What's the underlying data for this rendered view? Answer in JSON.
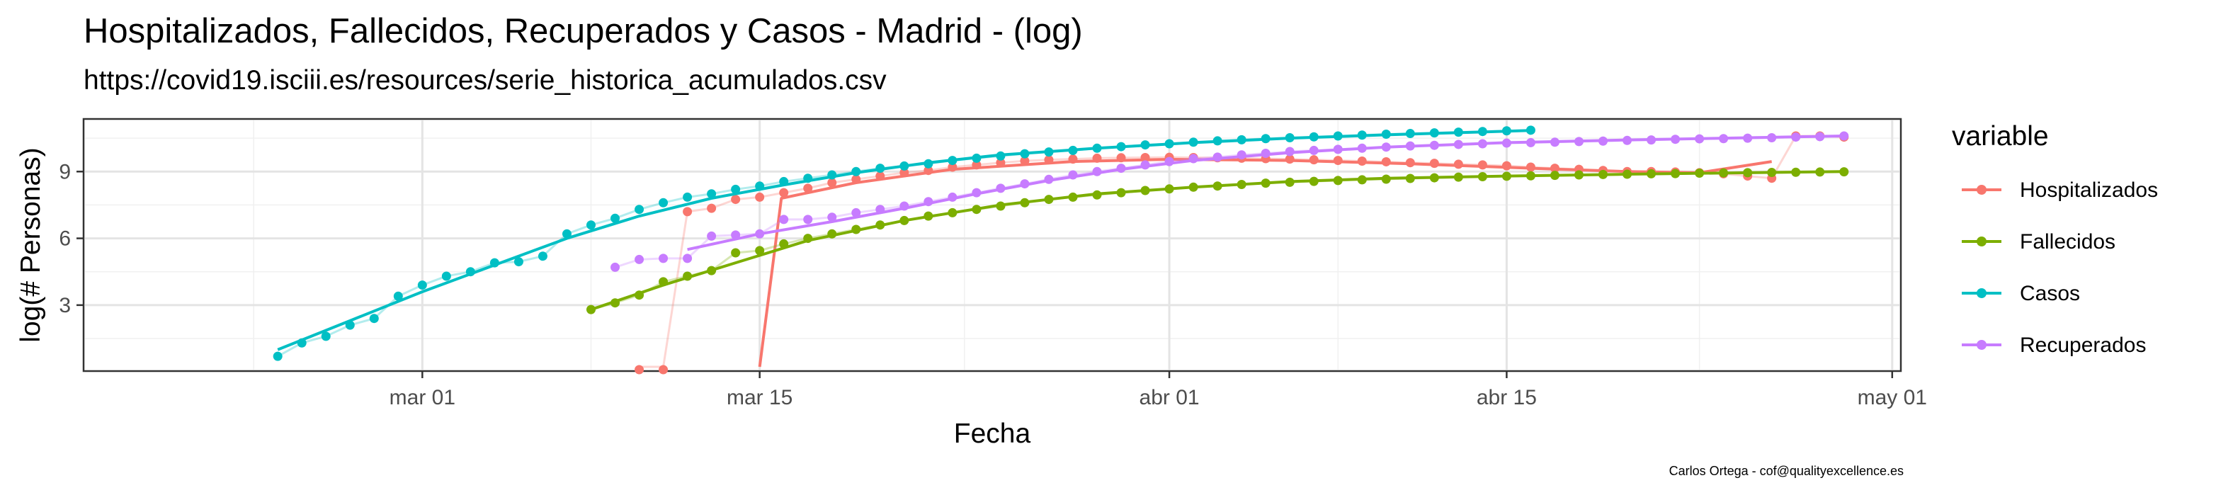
{
  "chart_data": {
    "type": "scatter",
    "title": "Hospitalizados, Fallecidos, Recuperados y Casos - Madrid - (log)",
    "subtitle": "https://covid19.isciii.es/resources/serie_historica_acumulados.csv",
    "xlabel": "Fecha",
    "ylabel": "log(# Personas)",
    "caption": "Carlos Ortega - cof@qualityexcellence.es",
    "x_ticks": [
      {
        "label": "mar 01",
        "day": 0
      },
      {
        "label": "mar 15",
        "day": 14
      },
      {
        "label": "abr 01",
        "day": 31
      },
      {
        "label": "abr 15",
        "day": 45
      },
      {
        "label": "may 01",
        "day": 61
      }
    ],
    "y_ticks": [
      3,
      6,
      9
    ],
    "xlim": [
      -14,
      61.3
    ],
    "ylim": [
      0.1,
      11.3
    ],
    "grid": true,
    "legend_title": "variable",
    "legend_position": "right",
    "series": [
      {
        "name": "Hospitalizados",
        "color": "#F8766D",
        "points": [
          [
            9,
            0
          ],
          [
            10,
            0
          ],
          [
            11,
            7.2
          ],
          [
            12,
            7.35
          ],
          [
            13,
            7.75
          ],
          [
            14,
            7.85
          ],
          [
            15,
            8.05
          ],
          [
            16,
            8.25
          ],
          [
            17,
            8.5
          ],
          [
            18,
            8.65
          ],
          [
            19,
            8.8
          ],
          [
            20,
            8.95
          ],
          [
            21,
            9.05
          ],
          [
            22,
            9.2
          ],
          [
            23,
            9.3
          ],
          [
            24,
            9.4
          ],
          [
            25,
            9.48
          ],
          [
            26,
            9.53
          ],
          [
            27,
            9.56
          ],
          [
            28,
            9.6
          ],
          [
            29,
            9.62
          ],
          [
            30,
            9.63
          ],
          [
            31,
            9.64
          ],
          [
            32,
            9.63
          ],
          [
            33,
            9.62
          ],
          [
            34,
            9.6
          ],
          [
            35,
            9.58
          ],
          [
            36,
            9.56
          ],
          [
            37,
            9.53
          ],
          [
            38,
            9.5
          ],
          [
            39,
            9.47
          ],
          [
            40,
            9.44
          ],
          [
            41,
            9.4
          ],
          [
            42,
            9.37
          ],
          [
            43,
            9.33
          ],
          [
            44,
            9.3
          ],
          [
            45,
            9.26
          ],
          [
            46,
            9.2
          ],
          [
            47,
            9.15
          ],
          [
            48,
            9.1
          ],
          [
            49,
            9.05
          ],
          [
            50,
            9.0
          ],
          [
            51,
            9.0
          ],
          [
            52,
            8.98
          ],
          [
            53,
            8.95
          ],
          [
            54,
            8.9
          ],
          [
            55,
            8.8
          ],
          [
            56,
            8.7
          ],
          [
            57,
            10.6
          ],
          [
            58,
            10.6
          ],
          [
            59,
            10.55
          ]
        ],
        "fit": [
          [
            14.0,
            0.1
          ],
          [
            14.9,
            7.8
          ],
          [
            18,
            8.5
          ],
          [
            22,
            9.1
          ],
          [
            27,
            9.45
          ],
          [
            31,
            9.55
          ],
          [
            36,
            9.5
          ],
          [
            41,
            9.35
          ],
          [
            46,
            9.15
          ],
          [
            50,
            9.0
          ],
          [
            53,
            8.95
          ],
          [
            56,
            9.45
          ]
        ]
      },
      {
        "name": "Fallecidos",
        "color": "#7CAE00",
        "points": [
          [
            7,
            2.8
          ],
          [
            8,
            3.1
          ],
          [
            9,
            3.45
          ],
          [
            10,
            4.05
          ],
          [
            11,
            4.3
          ],
          [
            12,
            4.55
          ],
          [
            13,
            5.35
          ],
          [
            14,
            5.45
          ],
          [
            15,
            5.75
          ],
          [
            16,
            6.0
          ],
          [
            17,
            6.2
          ],
          [
            18,
            6.4
          ],
          [
            19,
            6.6
          ],
          [
            20,
            6.8
          ],
          [
            21,
            7.0
          ],
          [
            22,
            7.15
          ],
          [
            23,
            7.3
          ],
          [
            24,
            7.45
          ],
          [
            25,
            7.6
          ],
          [
            26,
            7.75
          ],
          [
            27,
            7.85
          ],
          [
            28,
            7.95
          ],
          [
            29,
            8.05
          ],
          [
            30,
            8.15
          ],
          [
            31,
            8.22
          ],
          [
            32,
            8.3
          ],
          [
            33,
            8.35
          ],
          [
            34,
            8.42
          ],
          [
            35,
            8.48
          ],
          [
            36,
            8.52
          ],
          [
            37,
            8.56
          ],
          [
            38,
            8.6
          ],
          [
            39,
            8.63
          ],
          [
            40,
            8.66
          ],
          [
            41,
            8.69
          ],
          [
            42,
            8.72
          ],
          [
            43,
            8.75
          ],
          [
            44,
            8.77
          ],
          [
            45,
            8.79
          ],
          [
            46,
            8.81
          ],
          [
            47,
            8.83
          ],
          [
            48,
            8.85
          ],
          [
            49,
            8.87
          ],
          [
            50,
            8.88
          ],
          [
            51,
            8.9
          ],
          [
            52,
            8.91
          ],
          [
            53,
            8.93
          ],
          [
            54,
            8.94
          ],
          [
            55,
            8.95
          ],
          [
            56,
            8.96
          ],
          [
            57,
            8.97
          ],
          [
            58,
            8.98
          ],
          [
            59,
            8.99
          ]
        ],
        "fit": [
          [
            7,
            2.8
          ],
          [
            10,
            3.9
          ],
          [
            13,
            4.9
          ],
          [
            16,
            5.9
          ],
          [
            20,
            6.8
          ],
          [
            24,
            7.5
          ],
          [
            28,
            8.0
          ],
          [
            32,
            8.3
          ],
          [
            36,
            8.55
          ],
          [
            40,
            8.7
          ],
          [
            45,
            8.8
          ],
          [
            50,
            8.88
          ],
          [
            55,
            8.95
          ],
          [
            59,
            9.0
          ]
        ]
      },
      {
        "name": "Casos",
        "color": "#00BFC4",
        "points": [
          [
            -6,
            0.7
          ],
          [
            -5,
            1.3
          ],
          [
            -4,
            1.6
          ],
          [
            -3,
            2.1
          ],
          [
            -2,
            2.4
          ],
          [
            -1,
            3.4
          ],
          [
            0,
            3.9
          ],
          [
            1,
            4.3
          ],
          [
            2,
            4.5
          ],
          [
            3,
            4.9
          ],
          [
            4,
            4.95
          ],
          [
            5,
            5.2
          ],
          [
            6,
            6.2
          ],
          [
            7,
            6.6
          ],
          [
            8,
            6.9
          ],
          [
            9,
            7.3
          ],
          [
            10,
            7.6
          ],
          [
            11,
            7.85
          ],
          [
            12,
            8.0
          ],
          [
            13,
            8.2
          ],
          [
            14,
            8.35
          ],
          [
            15,
            8.55
          ],
          [
            16,
            8.7
          ],
          [
            17,
            8.85
          ],
          [
            18,
            9.0
          ],
          [
            19,
            9.15
          ],
          [
            20,
            9.25
          ],
          [
            21,
            9.35
          ],
          [
            22,
            9.5
          ],
          [
            23,
            9.6
          ],
          [
            24,
            9.7
          ],
          [
            25,
            9.8
          ],
          [
            26,
            9.88
          ],
          [
            27,
            9.95
          ],
          [
            28,
            10.05
          ],
          [
            29,
            10.12
          ],
          [
            30,
            10.2
          ],
          [
            31,
            10.25
          ],
          [
            32,
            10.32
          ],
          [
            33,
            10.38
          ],
          [
            34,
            10.43
          ],
          [
            35,
            10.48
          ],
          [
            36,
            10.52
          ],
          [
            37,
            10.56
          ],
          [
            38,
            10.6
          ],
          [
            39,
            10.64
          ],
          [
            40,
            10.68
          ],
          [
            41,
            10.71
          ],
          [
            42,
            10.74
          ],
          [
            43,
            10.77
          ],
          [
            44,
            10.8
          ],
          [
            45,
            10.83
          ],
          [
            46,
            10.86
          ]
        ],
        "fit": [
          [
            -6,
            1.0
          ],
          [
            -3,
            2.3
          ],
          [
            0,
            3.6
          ],
          [
            3,
            4.8
          ],
          [
            6,
            6.0
          ],
          [
            9,
            7.0
          ],
          [
            12,
            7.8
          ],
          [
            15,
            8.4
          ],
          [
            18,
            8.95
          ],
          [
            21,
            9.4
          ],
          [
            24,
            9.75
          ],
          [
            28,
            10.05
          ],
          [
            32,
            10.3
          ],
          [
            36,
            10.5
          ],
          [
            40,
            10.65
          ],
          [
            44,
            10.78
          ],
          [
            46,
            10.85
          ]
        ]
      },
      {
        "name": "Recuperados",
        "color": "#C77CFF",
        "points": [
          [
            8,
            4.7
          ],
          [
            9,
            5.05
          ],
          [
            10,
            5.1
          ],
          [
            11,
            5.1
          ],
          [
            12,
            6.1
          ],
          [
            13,
            6.15
          ],
          [
            14,
            6.2
          ],
          [
            15,
            6.85
          ],
          [
            16,
            6.85
          ],
          [
            17,
            6.95
          ],
          [
            18,
            7.15
          ],
          [
            19,
            7.3
          ],
          [
            20,
            7.45
          ],
          [
            21,
            7.65
          ],
          [
            22,
            7.85
          ],
          [
            23,
            8.05
          ],
          [
            24,
            8.25
          ],
          [
            25,
            8.45
          ],
          [
            26,
            8.65
          ],
          [
            27,
            8.85
          ],
          [
            28,
            9.0
          ],
          [
            29,
            9.15
          ],
          [
            30,
            9.3
          ],
          [
            31,
            9.45
          ],
          [
            32,
            9.58
          ],
          [
            33,
            9.65
          ],
          [
            34,
            9.75
          ],
          [
            35,
            9.82
          ],
          [
            36,
            9.9
          ],
          [
            37,
            9.95
          ],
          [
            38,
            10.0
          ],
          [
            39,
            10.05
          ],
          [
            40,
            10.1
          ],
          [
            41,
            10.15
          ],
          [
            42,
            10.18
          ],
          [
            43,
            10.22
          ],
          [
            44,
            10.25
          ],
          [
            45,
            10.28
          ],
          [
            46,
            10.3
          ],
          [
            47,
            10.32
          ],
          [
            48,
            10.35
          ],
          [
            49,
            10.37
          ],
          [
            50,
            10.4
          ],
          [
            51,
            10.42
          ],
          [
            52,
            10.45
          ],
          [
            53,
            10.47
          ],
          [
            54,
            10.48
          ],
          [
            55,
            10.5
          ],
          [
            56,
            10.52
          ],
          [
            57,
            10.55
          ],
          [
            58,
            10.57
          ],
          [
            59,
            10.6
          ]
        ],
        "fit": [
          [
            11,
            5.5
          ],
          [
            14,
            6.2
          ],
          [
            17,
            6.75
          ],
          [
            20,
            7.35
          ],
          [
            23,
            8.0
          ],
          [
            26,
            8.6
          ],
          [
            29,
            9.1
          ],
          [
            32,
            9.5
          ],
          [
            36,
            9.85
          ],
          [
            40,
            10.1
          ],
          [
            45,
            10.3
          ],
          [
            50,
            10.42
          ],
          [
            55,
            10.52
          ],
          [
            59,
            10.6
          ]
        ]
      }
    ]
  }
}
